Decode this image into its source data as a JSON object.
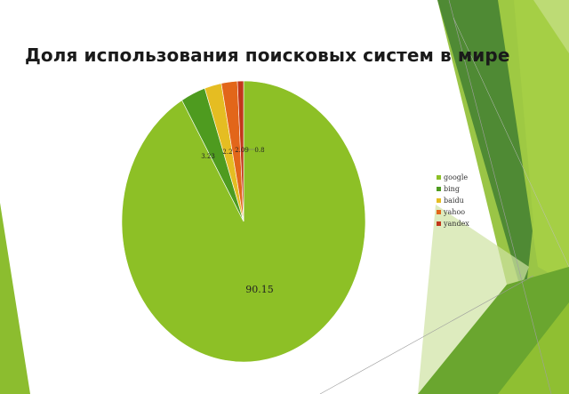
{
  "slide": {
    "title": "Доля использования поисковых систем в мире"
  },
  "chart_data": {
    "type": "pie",
    "title": "",
    "categories": [
      "google",
      "bing",
      "baidu",
      "yahoo",
      "yandex"
    ],
    "values": [
      90.15,
      3.23,
      2.2,
      2.09,
      0.8
    ],
    "data_labels": [
      "90.15",
      "3.23",
      "2.2",
      "2.09",
      "0.8"
    ],
    "colors": [
      "#8dc026",
      "#4e9b1f",
      "#e5bd22",
      "#e2661a",
      "#c2371a"
    ],
    "legend_position": "right",
    "start_angle": "12 o'clock",
    "direction": "counterclockwise from google end"
  },
  "theme": {
    "accent_dark_green": "#4e8a2c",
    "accent_light_green": "#8dbf2e"
  }
}
